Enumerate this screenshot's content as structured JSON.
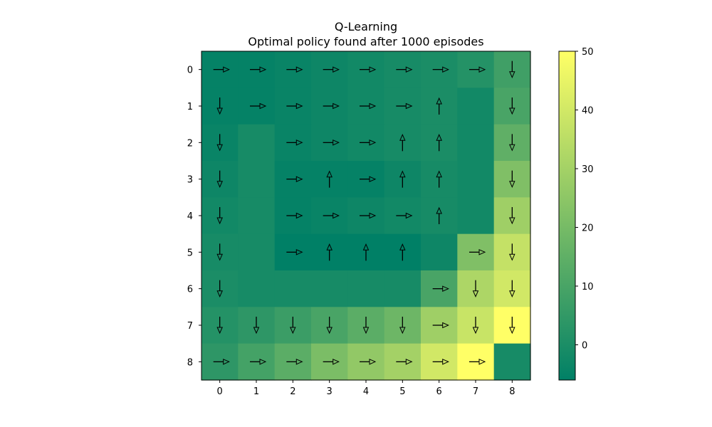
{
  "chart_data": {
    "type": "heatmap",
    "title": "Q-Learning",
    "subtitle": "Optimal policy found after 1000 episodes",
    "xlabel": "",
    "ylabel": "",
    "x_ticks": [
      "0",
      "1",
      "2",
      "3",
      "4",
      "5",
      "6",
      "7",
      "8"
    ],
    "y_ticks": [
      "0",
      "1",
      "2",
      "3",
      "4",
      "5",
      "6",
      "7",
      "8"
    ],
    "colorscale": "summer",
    "value_range": [
      -6,
      50
    ],
    "colorbar_ticks": [
      "0",
      "10",
      "20",
      "30",
      "40",
      "50"
    ],
    "colorbar_tick_values": [
      0,
      10,
      20,
      30,
      40,
      50
    ],
    "values": [
      [
        -5,
        -5,
        -4,
        -3,
        -2,
        -1,
        0,
        2,
        8
      ],
      [
        -5,
        -5,
        -4,
        -3,
        -2,
        -1,
        0,
        -2,
        10
      ],
      [
        -4,
        -1,
        -4,
        -3,
        -2,
        -1,
        0,
        -2,
        15
      ],
      [
        -3,
        -1,
        -5,
        -5,
        -5,
        -3,
        -1,
        -2,
        22
      ],
      [
        -2,
        -1,
        -5,
        -4,
        -3,
        -2,
        -1,
        -2,
        29
      ],
      [
        -1,
        -1,
        -6,
        -6,
        -6,
        -6,
        -3,
        22,
        37
      ],
      [
        0,
        -1,
        -1,
        -1,
        -1,
        -1,
        10,
        32,
        40
      ],
      [
        2,
        4,
        7,
        10,
        14,
        18,
        29,
        38,
        50
      ],
      [
        4,
        9,
        14,
        21,
        26,
        30,
        40,
        50,
        -1
      ]
    ],
    "policy": [
      [
        "right",
        "right",
        "right",
        "right",
        "right",
        "right",
        "right",
        "right",
        "down"
      ],
      [
        "down",
        "right",
        "right",
        "right",
        "right",
        "right",
        "up",
        "none",
        "down"
      ],
      [
        "down",
        "none",
        "right",
        "right",
        "right",
        "up",
        "up",
        "none",
        "down"
      ],
      [
        "down",
        "none",
        "right",
        "up",
        "right",
        "up",
        "up",
        "none",
        "down"
      ],
      [
        "down",
        "none",
        "right",
        "right",
        "right",
        "right",
        "up",
        "none",
        "down"
      ],
      [
        "down",
        "none",
        "right",
        "up",
        "up",
        "up",
        "none",
        "right",
        "down"
      ],
      [
        "down",
        "none",
        "none",
        "none",
        "none",
        "none",
        "right",
        "down",
        "down"
      ],
      [
        "down",
        "down",
        "down",
        "down",
        "down",
        "down",
        "right",
        "down",
        "down"
      ],
      [
        "right",
        "right",
        "right",
        "right",
        "right",
        "right",
        "right",
        "right",
        "none"
      ]
    ],
    "arrow_color": "#000000"
  }
}
